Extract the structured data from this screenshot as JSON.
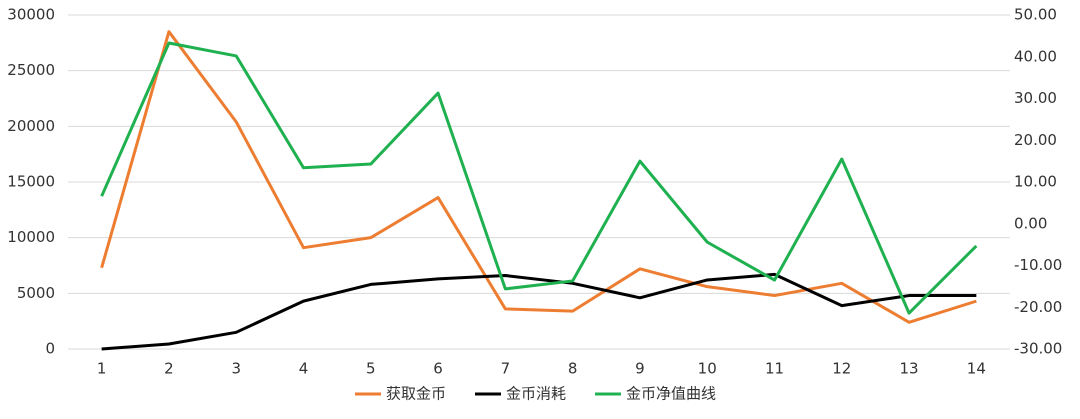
{
  "chart_data": {
    "type": "line",
    "categories": [
      1,
      2,
      3,
      4,
      5,
      6,
      7,
      8,
      9,
      10,
      11,
      12,
      13,
      14
    ],
    "series": [
      {
        "name": "获取金币",
        "color": "#ed7d31",
        "values": [
          7300,
          28500,
          20400,
          9100,
          10000,
          13600,
          3600,
          3400,
          7200,
          5600,
          4800,
          5900,
          2400,
          4300
        ]
      },
      {
        "name": "金币消耗",
        "color": "#000000",
        "values": [
          0,
          450,
          1500,
          4300,
          5800,
          6300,
          6600,
          5900,
          4600,
          6200,
          6700,
          3900,
          4800,
          4800
        ]
      },
      {
        "name": "金币净值曲线",
        "color": "#1fb14f",
        "axis": "y2",
        "values": [
          6.6,
          43.3,
          40.2,
          13.4,
          14.3,
          31.3,
          -15.6,
          -13.7,
          15.0,
          -4.4,
          -13.5,
          15.5,
          -21.4,
          -5.3
        ]
      }
    ],
    "ylim": [
      0,
      30000
    ],
    "yticks": [
      0,
      5000,
      10000,
      15000,
      20000,
      25000,
      30000
    ],
    "y2lim": [
      -30,
      50
    ],
    "y2ticks": [
      {
        "value": -30,
        "label": "-30.00"
      },
      {
        "value": -20,
        "label": "-20.00"
      },
      {
        "value": -10,
        "label": "-10.00"
      },
      {
        "value": 0,
        "label": "0.00"
      },
      {
        "value": 10,
        "label": "10.00"
      },
      {
        "value": 20,
        "label": "20.00"
      },
      {
        "value": 30,
        "label": "30.00"
      },
      {
        "value": 40,
        "label": "40.00"
      },
      {
        "value": 50,
        "label": "50.00"
      }
    ],
    "grid": true,
    "legend": "bottom"
  }
}
